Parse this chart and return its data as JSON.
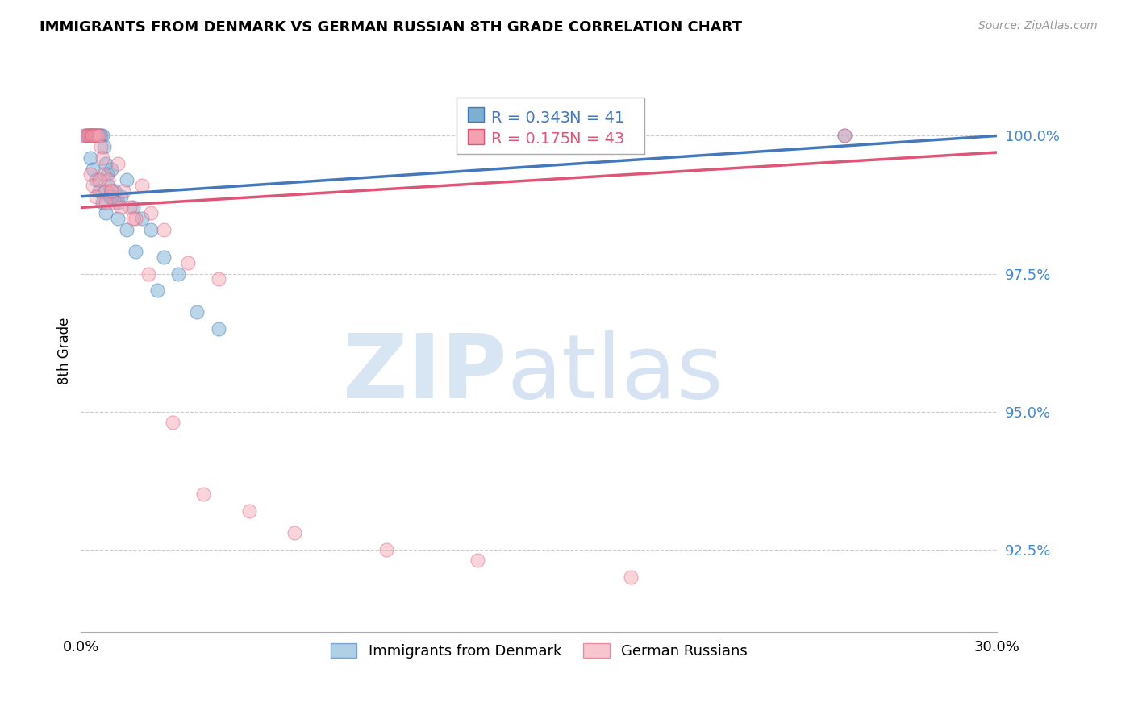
{
  "title": "IMMIGRANTS FROM DENMARK VS GERMAN RUSSIAN 8TH GRADE CORRELATION CHART",
  "source": "Source: ZipAtlas.com",
  "ylabel": "8th Grade",
  "x_label_bottom_left": "0.0%",
  "x_label_bottom_right": "30.0%",
  "xlim": [
    0.0,
    30.0
  ],
  "ylim": [
    91.0,
    101.2
  ],
  "yticks": [
    92.5,
    95.0,
    97.5,
    100.0
  ],
  "ytick_labels": [
    "92.5%",
    "95.0%",
    "97.5%",
    "100.0%"
  ],
  "legend_blue_r": "R = 0.343",
  "legend_blue_n": "N = 41",
  "legend_pink_r": "R = 0.175",
  "legend_pink_n": "N = 43",
  "legend_label_blue": "Immigrants from Denmark",
  "legend_label_pink": "German Russians",
  "blue_color": "#7BAFD4",
  "pink_color": "#F4A0B0",
  "blue_line_color": "#4477BB",
  "pink_line_color": "#DD5577",
  "blue_scatter_x": [
    0.15,
    0.2,
    0.25,
    0.3,
    0.35,
    0.4,
    0.45,
    0.5,
    0.55,
    0.6,
    0.65,
    0.7,
    0.75,
    0.8,
    0.85,
    0.9,
    0.95,
    1.0,
    1.1,
    1.2,
    1.3,
    1.5,
    1.7,
    2.0,
    2.3,
    2.7,
    3.2,
    3.8,
    0.3,
    0.4,
    0.5,
    0.6,
    0.7,
    0.8,
    1.0,
    1.2,
    1.5,
    1.8,
    2.5,
    4.5,
    25.0
  ],
  "blue_scatter_y": [
    100.0,
    100.0,
    100.0,
    100.0,
    100.0,
    100.0,
    100.0,
    100.0,
    100.0,
    100.0,
    100.0,
    100.0,
    99.8,
    99.5,
    99.3,
    99.1,
    98.9,
    99.4,
    99.0,
    98.8,
    98.9,
    99.2,
    98.7,
    98.5,
    98.3,
    97.8,
    97.5,
    96.8,
    99.6,
    99.4,
    99.2,
    99.0,
    98.8,
    98.6,
    98.9,
    98.5,
    98.3,
    97.9,
    97.2,
    96.5,
    100.0
  ],
  "pink_scatter_x": [
    0.1,
    0.2,
    0.25,
    0.3,
    0.35,
    0.4,
    0.45,
    0.5,
    0.55,
    0.6,
    0.65,
    0.7,
    0.75,
    0.8,
    0.9,
    1.0,
    1.1,
    1.2,
    1.4,
    1.6,
    1.8,
    2.0,
    2.3,
    2.7,
    3.5,
    4.5,
    0.3,
    0.4,
    0.5,
    0.6,
    0.8,
    1.0,
    1.3,
    1.7,
    2.2,
    3.0,
    4.0,
    5.5,
    7.0,
    10.0,
    13.0,
    18.0,
    25.0
  ],
  "pink_scatter_y": [
    100.0,
    100.0,
    100.0,
    100.0,
    100.0,
    100.0,
    100.0,
    100.0,
    100.0,
    100.0,
    99.8,
    99.6,
    99.3,
    99.0,
    99.2,
    99.0,
    98.8,
    99.5,
    99.0,
    98.7,
    98.5,
    99.1,
    98.6,
    98.3,
    97.7,
    97.4,
    99.3,
    99.1,
    98.9,
    99.2,
    98.8,
    99.0,
    98.7,
    98.5,
    97.5,
    94.8,
    93.5,
    93.2,
    92.8,
    92.5,
    92.3,
    92.0,
    100.0
  ],
  "blue_trendline_x": [
    0.0,
    30.0
  ],
  "blue_trendline_y": [
    98.9,
    100.0
  ],
  "pink_trendline_x": [
    0.0,
    30.0
  ],
  "pink_trendline_y": [
    98.7,
    99.7
  ]
}
